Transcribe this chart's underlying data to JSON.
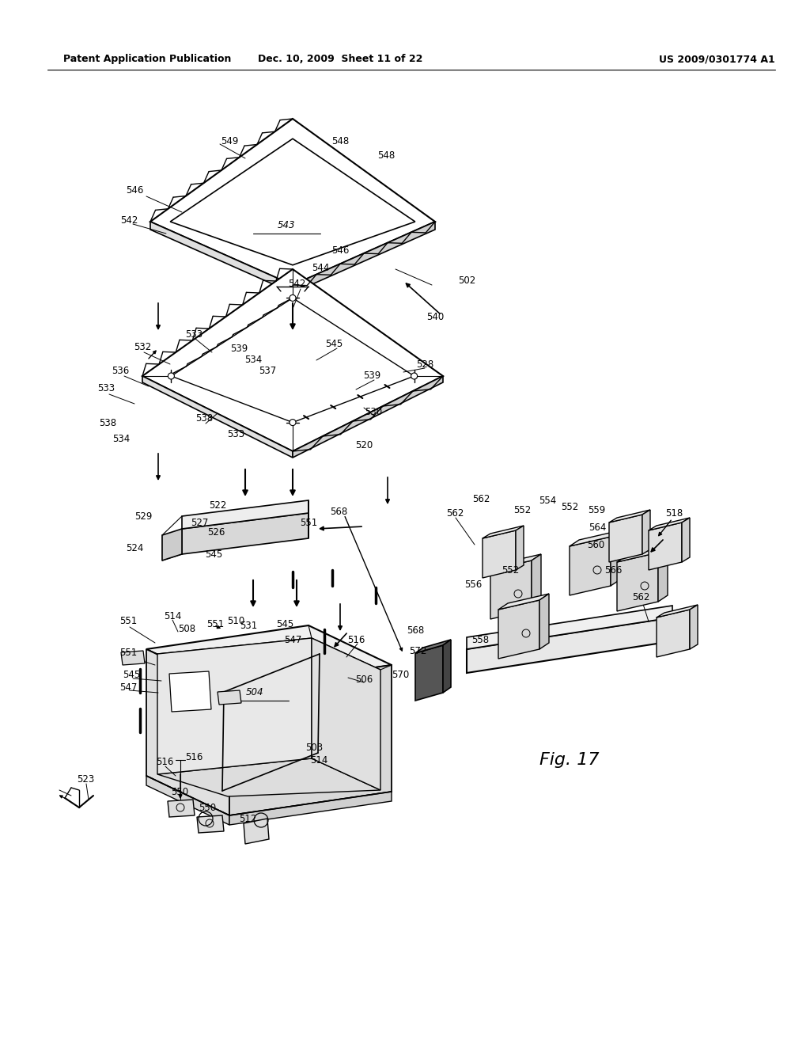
{
  "header_left": "Patent Application Publication",
  "header_mid": "Dec. 10, 2009  Sheet 11 of 22",
  "header_right": "US 2009/0301774 A1",
  "fig_label": "Fig. 17",
  "background": "#ffffff"
}
